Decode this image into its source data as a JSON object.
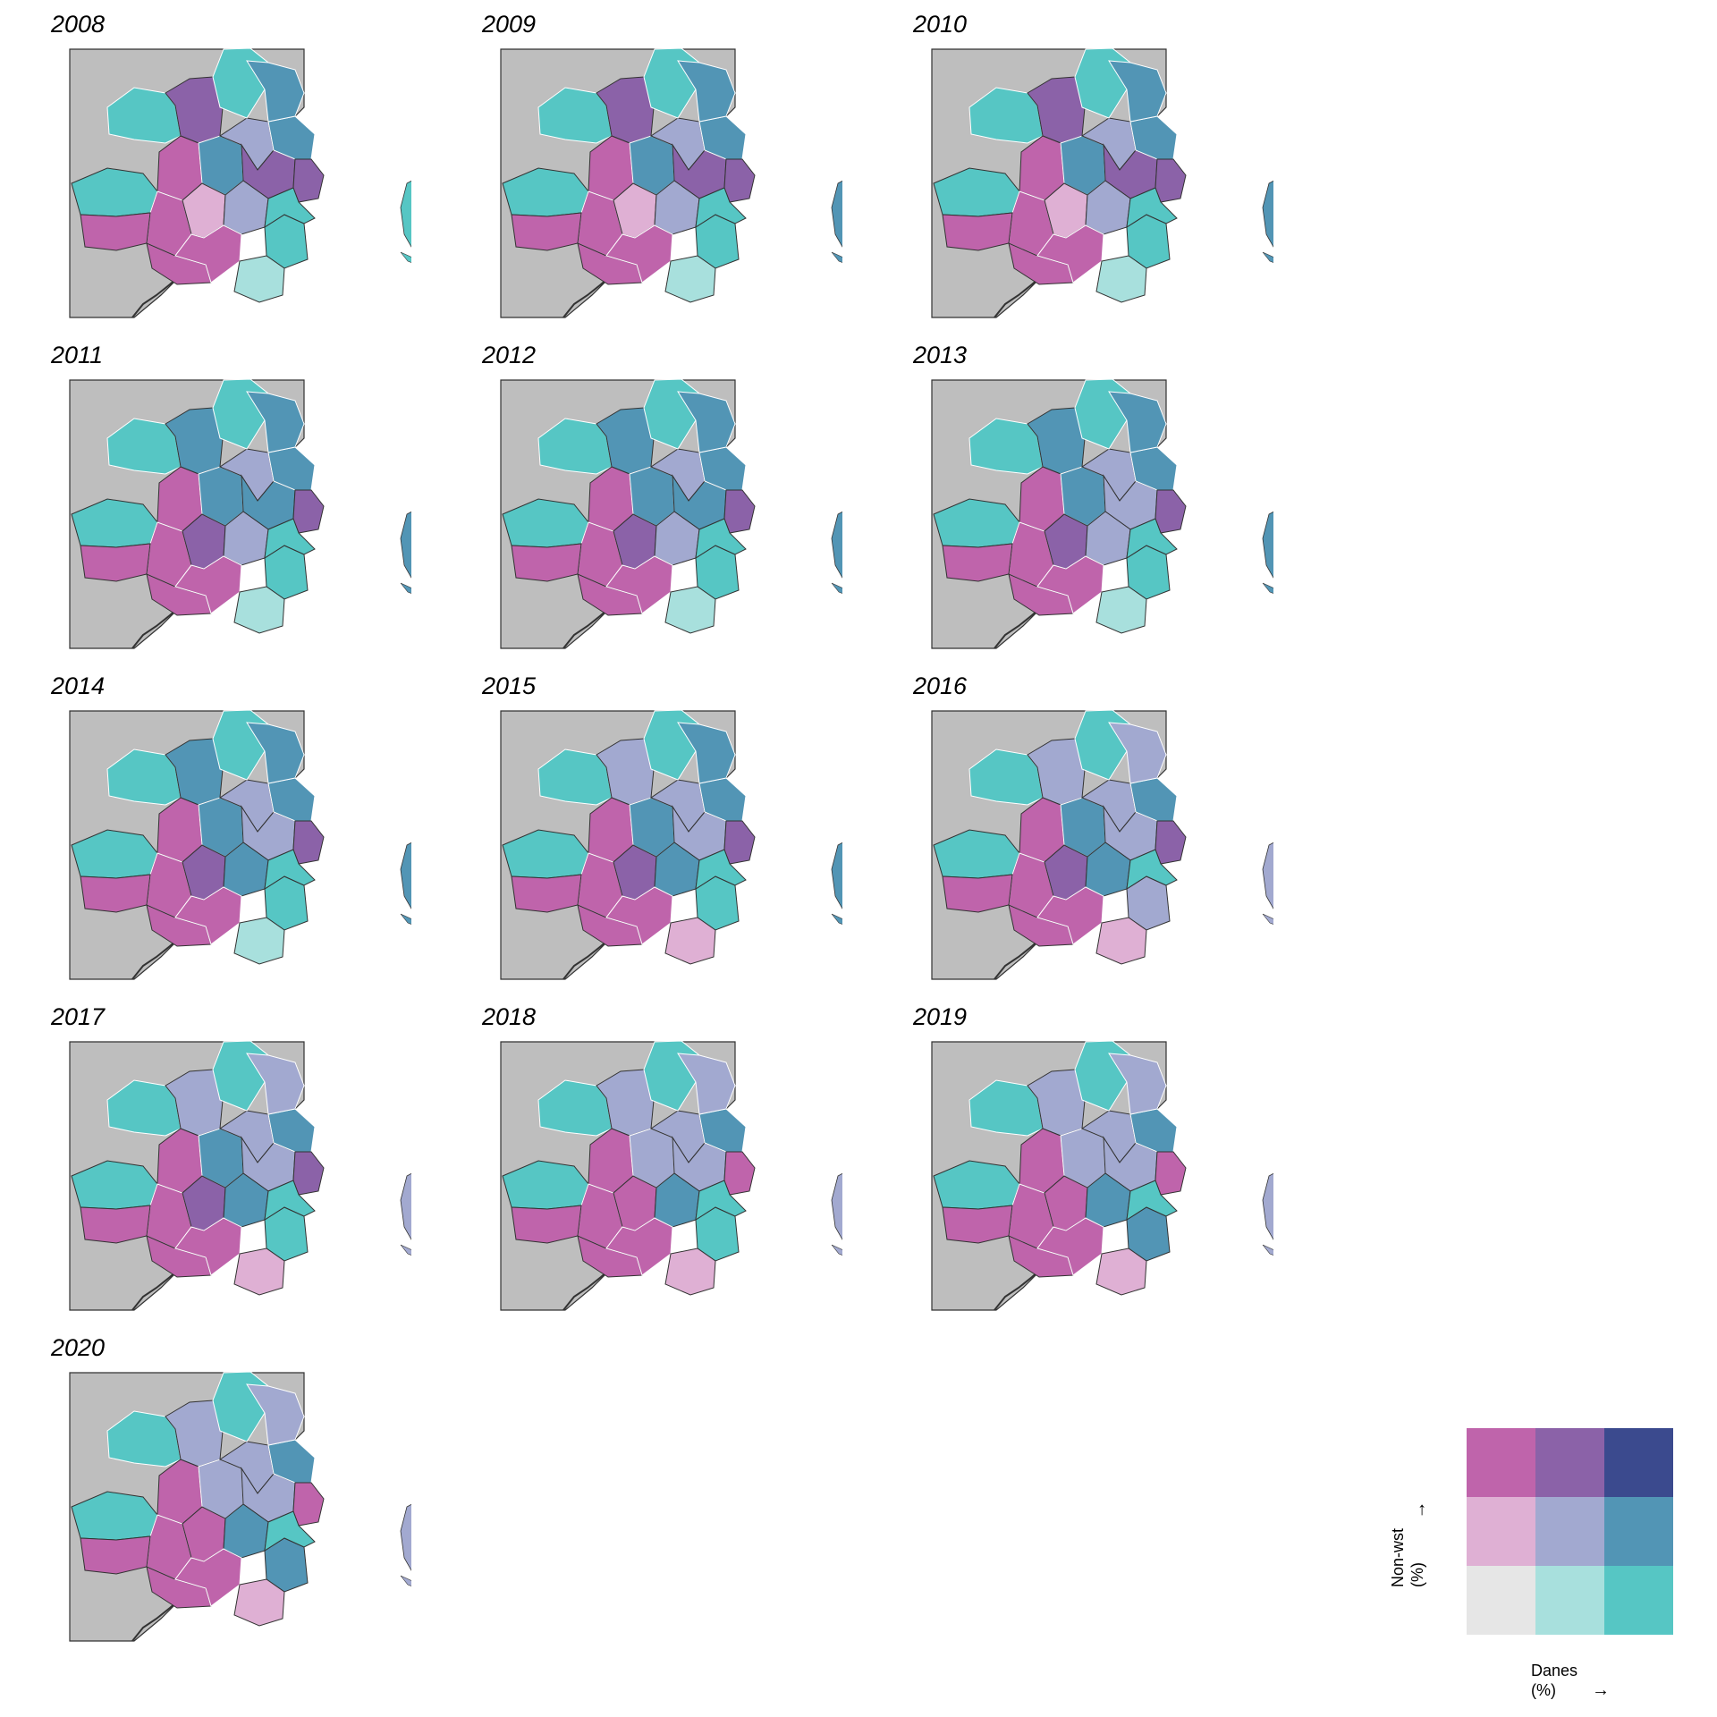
{
  "figure": {
    "panels": [
      {
        "year": "2008",
        "palette": [
          "c",
          "n",
          "m",
          "d",
          "c",
          "l",
          "m",
          "p",
          "m",
          "c",
          "n",
          "l",
          "d",
          "c",
          "m",
          "m",
          "n",
          "c",
          "d",
          "e"
        ],
        "island": "c"
      },
      {
        "year": "2009",
        "palette": [
          "c",
          "n",
          "m",
          "d",
          "c",
          "l",
          "m",
          "p",
          "m",
          "c",
          "n",
          "l",
          "d",
          "c",
          "m",
          "m",
          "n",
          "c",
          "d",
          "e"
        ],
        "island": "d"
      },
      {
        "year": "2010",
        "palette": [
          "c",
          "n",
          "m",
          "d",
          "c",
          "l",
          "m",
          "p",
          "m",
          "c",
          "n",
          "l",
          "d",
          "c",
          "m",
          "m",
          "n",
          "c",
          "d",
          "e"
        ],
        "island": "d"
      },
      {
        "year": "2011",
        "palette": [
          "c",
          "d",
          "m",
          "d",
          "c",
          "l",
          "m",
          "n",
          "m",
          "c",
          "d",
          "l",
          "d",
          "c",
          "m",
          "m",
          "n",
          "c",
          "d",
          "e"
        ],
        "island": "d"
      },
      {
        "year": "2012",
        "palette": [
          "c",
          "d",
          "m",
          "d",
          "c",
          "l",
          "m",
          "n",
          "m",
          "c",
          "d",
          "l",
          "d",
          "c",
          "m",
          "m",
          "n",
          "c",
          "d",
          "e"
        ],
        "island": "d"
      },
      {
        "year": "2013",
        "palette": [
          "c",
          "d",
          "m",
          "d",
          "c",
          "l",
          "m",
          "n",
          "m",
          "c",
          "l",
          "l",
          "d",
          "c",
          "m",
          "m",
          "n",
          "c",
          "d",
          "e"
        ],
        "island": "d"
      },
      {
        "year": "2014",
        "palette": [
          "c",
          "d",
          "m",
          "d",
          "c",
          "l",
          "m",
          "n",
          "m",
          "c",
          "l",
          "d",
          "d",
          "c",
          "m",
          "m",
          "n",
          "c",
          "d",
          "e"
        ],
        "island": "d"
      },
      {
        "year": "2015",
        "palette": [
          "c",
          "l",
          "m",
          "d",
          "c",
          "l",
          "m",
          "n",
          "m",
          "c",
          "l",
          "d",
          "d",
          "c",
          "m",
          "m",
          "n",
          "c",
          "d",
          "p"
        ],
        "island": "d"
      },
      {
        "year": "2016",
        "palette": [
          "c",
          "l",
          "m",
          "d",
          "c",
          "l",
          "m",
          "n",
          "m",
          "c",
          "l",
          "d",
          "d",
          "l",
          "m",
          "m",
          "n",
          "c",
          "l",
          "p"
        ],
        "island": "l"
      },
      {
        "year": "2017",
        "palette": [
          "c",
          "l",
          "m",
          "d",
          "c",
          "l",
          "m",
          "n",
          "m",
          "c",
          "l",
          "d",
          "d",
          "c",
          "m",
          "m",
          "n",
          "c",
          "l",
          "p"
        ],
        "island": "l"
      },
      {
        "year": "2018",
        "palette": [
          "c",
          "l",
          "m",
          "l",
          "c",
          "l",
          "m",
          "m",
          "m",
          "c",
          "l",
          "d",
          "d",
          "c",
          "m",
          "m",
          "m",
          "c",
          "l",
          "p"
        ],
        "island": "l"
      },
      {
        "year": "2019",
        "palette": [
          "c",
          "l",
          "m",
          "l",
          "c",
          "l",
          "m",
          "m",
          "m",
          "c",
          "l",
          "d",
          "d",
          "d",
          "m",
          "m",
          "m",
          "c",
          "l",
          "p"
        ],
        "island": "l"
      },
      {
        "year": "2020",
        "palette": [
          "c",
          "l",
          "m",
          "l",
          "c",
          "l",
          "m",
          "m",
          "m",
          "c",
          "l",
          "d",
          "d",
          "d",
          "m",
          "m",
          "m",
          "c",
          "l",
          "p"
        ],
        "island": "l"
      }
    ]
  },
  "colors": {
    "c": "#56c6c4",
    "e": "#a8e0dd",
    "g": "#e6e6e6",
    "l": "#a2a9d0",
    "d": "#5295b5",
    "p": "#dfb0d4",
    "m": "#bf64ab",
    "n": "#8b62a8",
    "k": "#3b4a8e",
    "background": "#bebebe",
    "border": "#333333"
  },
  "legend": {
    "grid": [
      [
        "m",
        "n",
        "k"
      ],
      [
        "p",
        "l",
        "d"
      ],
      [
        "g",
        "e",
        "c"
      ]
    ],
    "x_label_line1": "Danes",
    "x_label_line2": "(%)",
    "x_arrow": "→",
    "y_label_line1": "Non-wst",
    "y_label_line2": "(%)",
    "y_arrow": "→"
  }
}
